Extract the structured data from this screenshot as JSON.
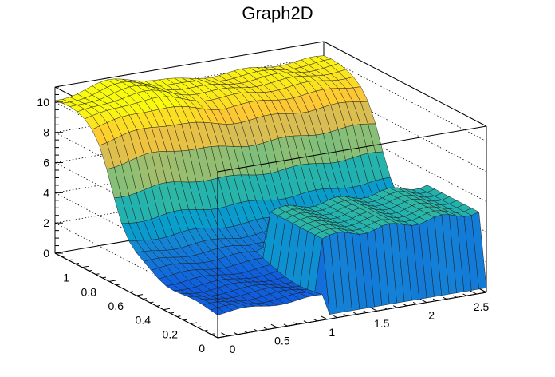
{
  "chart_data": {
    "type": "surface",
    "title": "Graph2D",
    "xlabel": "",
    "ylabel": "",
    "zlabel": "",
    "xlim": [
      -0.1,
      2.6
    ],
    "ylim": [
      0,
      1.2
    ],
    "zlim": [
      0,
      11
    ],
    "x_ticks": [
      "0",
      "0.5",
      "1",
      "1.5",
      "2",
      "2.5"
    ],
    "y_ticks": [
      "0",
      "0.2",
      "0.4",
      "0.6",
      "0.8",
      "1"
    ],
    "z_ticks": [
      "0",
      "2",
      "4",
      "6",
      "8",
      "10"
    ],
    "grid_z": [
      2,
      4,
      6,
      8,
      10
    ],
    "colormap": [
      "#352a87",
      "#0f5cdd",
      "#1481d6",
      "#06a4ca",
      "#2eb7a4",
      "#87bf77",
      "#d1bb59",
      "#fec832",
      "#f9fb0e"
    ],
    "surface_description_values": {
      "back_level": 10,
      "mid_level": 2.4,
      "front_level": 1.6,
      "wall_height": 5.1,
      "wall_x_start": 1.0,
      "wall_y_max": 0.45
    }
  }
}
